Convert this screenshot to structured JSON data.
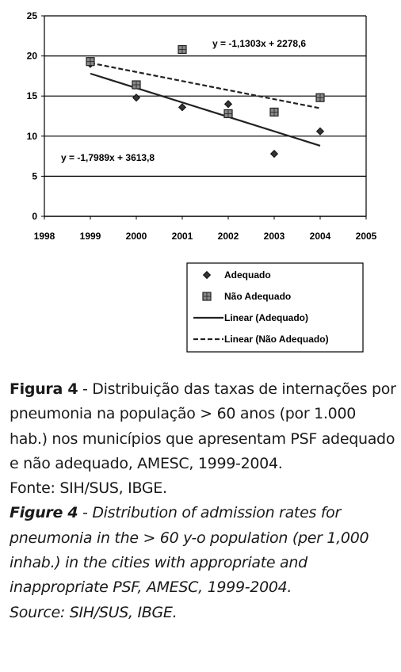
{
  "chart_data": {
    "type": "scatter",
    "x_ticks": [
      "1998",
      "1999",
      "2000",
      "2001",
      "2002",
      "2003",
      "2004",
      "2005"
    ],
    "y_ticks": [
      "0",
      "5",
      "10",
      "15",
      "20",
      "25"
    ],
    "xlim": [
      1998,
      2005
    ],
    "ylim": [
      0,
      25
    ],
    "grid": "horizontal",
    "legend_position": "bottom-right, outside plot",
    "series": [
      {
        "name": "Adequado",
        "marker": "diamond",
        "points": [
          {
            "x": 1999,
            "y": 19.0
          },
          {
            "x": 2000,
            "y": 14.8
          },
          {
            "x": 2001,
            "y": 13.6
          },
          {
            "x": 2002,
            "y": 14.0
          },
          {
            "x": 2003,
            "y": 7.8
          },
          {
            "x": 2004,
            "y": 10.6
          }
        ]
      },
      {
        "name": "Não Adequado",
        "marker": "square",
        "points": [
          {
            "x": 1999,
            "y": 19.3
          },
          {
            "x": 2000,
            "y": 16.4
          },
          {
            "x": 2001,
            "y": 20.8
          },
          {
            "x": 2002,
            "y": 12.8
          },
          {
            "x": 2003,
            "y": 13.0
          },
          {
            "x": 2004,
            "y": 14.8
          }
        ]
      }
    ],
    "trendlines": [
      {
        "name": "Linear (Adequado)",
        "style": "solid",
        "slope": -1.7989,
        "intercept": 3613.8,
        "x_start": 1999,
        "x_end": 2004,
        "equation": "y = -1,7989x + 3613,8"
      },
      {
        "name": "Linear (Não Adequado)",
        "style": "dashed",
        "slope": -1.1303,
        "intercept": 2278.6,
        "x_start": 1999,
        "x_end": 2004,
        "equation": "y = -1,1303x + 2278,6"
      }
    ],
    "legend": [
      "Adequado",
      "Não Adequado",
      "Linear (Adequado)",
      "Linear (Não Adequado)"
    ]
  },
  "caption": {
    "pt_label": "Figura 4",
    "pt_text": " - Distribuição das taxas de internações por pneumonia na população > 60 anos (por 1.000 hab.) nos municípios que apresentam PSF adequado e não adequado, AMESC, 1999-2004.",
    "pt_source": "Fonte: SIH/SUS, IBGE.",
    "en_label": "Figure 4",
    "en_text": " - Distribution of admission rates for pneumonia in the > 60 y-o population (per 1,000 inhab.) in the cities with appropriate and inappropriate PSF, AMESC, 1999-2004.",
    "en_source": "Source: SIH/SUS, IBGE."
  }
}
